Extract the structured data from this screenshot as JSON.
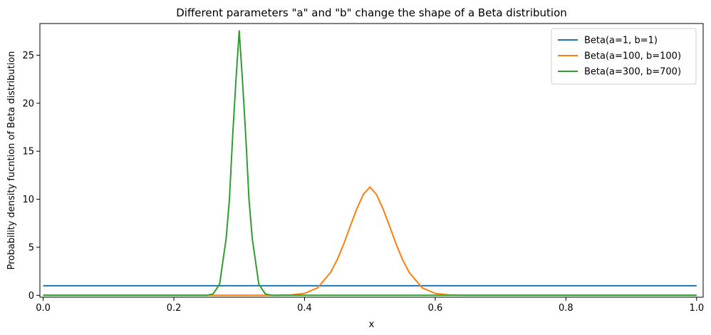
{
  "chart_data": {
    "type": "line",
    "title": "Different parameters \"a\" and \"b\" change the shape of a Beta distribution",
    "xlabel": "x",
    "ylabel": "Probability density fucntion of Beta distribution",
    "xlim": [
      -0.005,
      1.01
    ],
    "ylim": [
      -0.2,
      28.3
    ],
    "x_ticks": [
      0.0,
      0.2,
      0.4,
      0.6,
      0.8,
      1.0
    ],
    "x_tick_labels": [
      "0.0",
      "0.2",
      "0.4",
      "0.6",
      "0.8",
      "1.0"
    ],
    "y_ticks": [
      0,
      5,
      10,
      15,
      20,
      25
    ],
    "y_tick_labels": [
      "0",
      "5",
      "10",
      "15",
      "20",
      "25"
    ],
    "grid": false,
    "legend_position": "top-right",
    "series": [
      {
        "name": "Beta(a=1, b=1)",
        "color": "#1f77b4",
        "x": [
          0.0,
          1.0
        ],
        "y": [
          1.0,
          1.0
        ]
      },
      {
        "name": "Beta(a=100, b=100)",
        "color": "#ff7f0e",
        "x": [
          0.0,
          0.35,
          0.38,
          0.4,
          0.42,
          0.44,
          0.45,
          0.46,
          0.47,
          0.48,
          0.49,
          0.5,
          0.51,
          0.52,
          0.53,
          0.54,
          0.55,
          0.56,
          0.58,
          0.6,
          0.62,
          0.65,
          1.0
        ],
        "y": [
          0.0,
          0.0,
          0.04,
          0.2,
          0.78,
          2.4,
          3.71,
          5.35,
          7.22,
          9.01,
          10.51,
          11.27,
          10.51,
          9.01,
          7.22,
          5.35,
          3.71,
          2.4,
          0.78,
          0.2,
          0.04,
          0.0,
          0.0
        ]
      },
      {
        "name": "Beta(a=300, b=700)",
        "color": "#2ca02c",
        "x": [
          0.0,
          0.25,
          0.26,
          0.27,
          0.28,
          0.285,
          0.29,
          0.295,
          0.3,
          0.305,
          0.31,
          0.315,
          0.32,
          0.33,
          0.34,
          0.35,
          1.0
        ],
        "y": [
          0.0,
          0.0,
          0.14,
          1.16,
          5.9,
          9.95,
          16.61,
          22.38,
          27.54,
          22.38,
          16.61,
          9.95,
          5.9,
          1.16,
          0.14,
          0.0,
          0.0
        ]
      }
    ]
  }
}
